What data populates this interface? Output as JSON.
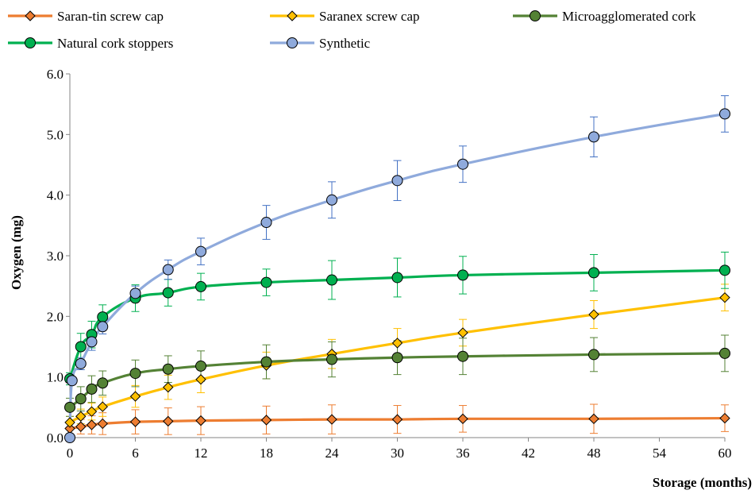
{
  "chart_data": {
    "type": "line",
    "xlabel": "Storage (months)",
    "ylabel": "Oxygen (mg)",
    "xlim": [
      0,
      60
    ],
    "ylim": [
      0,
      6
    ],
    "x_ticks": [
      "0",
      "6",
      "12",
      "18",
      "24",
      "30",
      "36",
      "42",
      "48",
      "54",
      "60"
    ],
    "y_ticks": [
      "0.0",
      "1.0",
      "2.0",
      "3.0",
      "4.0",
      "5.0",
      "6.0"
    ],
    "grid": false,
    "legend_position": "top",
    "series": [
      {
        "name": "Saran-tin screw cap",
        "color": "#ED7D31",
        "marker": "diamond",
        "x": [
          0,
          1,
          2,
          3,
          6,
          9,
          12,
          18,
          24,
          30,
          36,
          48,
          60
        ],
        "y": [
          0.15,
          0.18,
          0.21,
          0.23,
          0.26,
          0.27,
          0.28,
          0.29,
          0.3,
          0.3,
          0.31,
          0.31,
          0.32
        ],
        "err": [
          0.1,
          0.12,
          0.15,
          0.18,
          0.2,
          0.22,
          0.23,
          0.23,
          0.24,
          0.23,
          0.22,
          0.24,
          0.22
        ]
      },
      {
        "name": "Saranex screw cap",
        "color": "#FFC000",
        "marker": "diamond",
        "x": [
          0,
          1,
          2,
          3,
          6,
          9,
          12,
          18,
          24,
          30,
          36,
          48,
          60
        ],
        "y": [
          0.25,
          0.35,
          0.43,
          0.51,
          0.68,
          0.83,
          0.96,
          1.19,
          1.38,
          1.56,
          1.73,
          2.03,
          2.31
        ],
        "err": [
          0.1,
          0.12,
          0.14,
          0.16,
          0.18,
          0.2,
          0.22,
          0.22,
          0.24,
          0.24,
          0.22,
          0.23,
          0.22
        ]
      },
      {
        "name": "Microagglomerated cork",
        "color": "#548235",
        "marker": "circle",
        "x": [
          0,
          1,
          2,
          3,
          6,
          9,
          12,
          18,
          24,
          30,
          36,
          48,
          60
        ],
        "y": [
          0.5,
          0.64,
          0.8,
          0.9,
          1.06,
          1.13,
          1.18,
          1.25,
          1.29,
          1.32,
          1.34,
          1.37,
          1.39
        ],
        "err": [
          0.15,
          0.2,
          0.22,
          0.2,
          0.22,
          0.22,
          0.25,
          0.28,
          0.29,
          0.28,
          0.3,
          0.28,
          0.3
        ]
      },
      {
        "name": "Natural cork stoppers",
        "color": "#00B050",
        "marker": "circle",
        "x": [
          0,
          1,
          2,
          3,
          6,
          9,
          12,
          18,
          24,
          30,
          36,
          48,
          60
        ],
        "y": [
          0.97,
          1.5,
          1.7,
          1.99,
          2.3,
          2.39,
          2.49,
          2.56,
          2.6,
          2.64,
          2.68,
          2.72,
          2.76
        ],
        "err": [
          0.1,
          0.22,
          0.22,
          0.2,
          0.22,
          0.22,
          0.22,
          0.22,
          0.32,
          0.32,
          0.31,
          0.3,
          0.3
        ]
      },
      {
        "name": "Synthetic",
        "color": "#8FAADC",
        "marker": "circle",
        "errcolor": "#4472C4",
        "x": [
          0,
          0.2,
          1,
          2,
          3,
          6,
          9,
          12,
          18,
          24,
          30,
          36,
          48,
          60
        ],
        "y": [
          0,
          0.94,
          1.22,
          1.58,
          1.83,
          2.38,
          2.77,
          3.07,
          3.55,
          3.92,
          4.24,
          4.51,
          4.96,
          5.34
        ],
        "err": [
          0,
          0.05,
          0.1,
          0.14,
          0.12,
          0.12,
          0.16,
          0.22,
          0.28,
          0.3,
          0.33,
          0.3,
          0.33,
          0.3
        ]
      }
    ]
  }
}
